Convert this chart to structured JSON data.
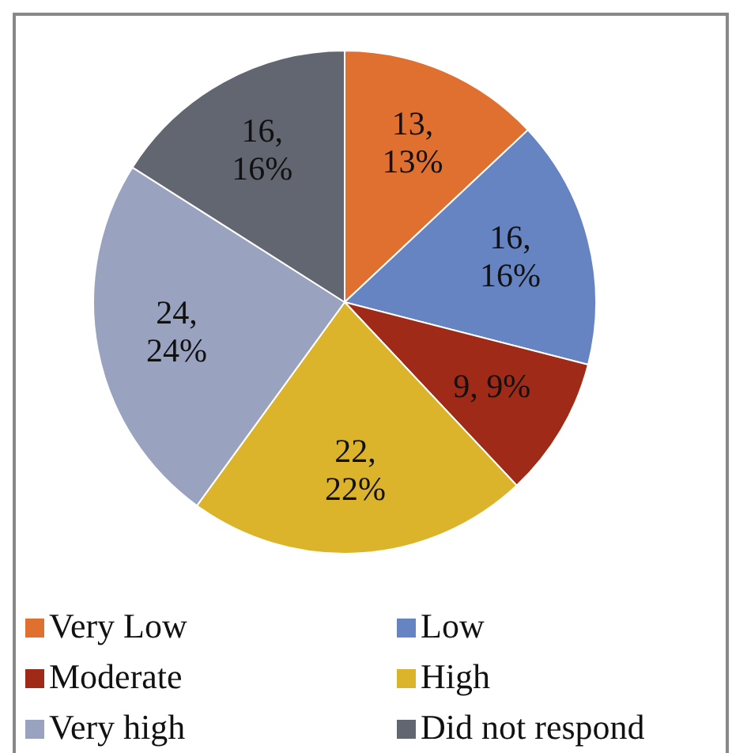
{
  "chart_data": {
    "type": "pie",
    "categories": [
      "Very Low",
      "Low",
      "Moderate",
      "High",
      "Very high",
      "Did not respond"
    ],
    "values": [
      13,
      16,
      9,
      22,
      24,
      16
    ],
    "colors": [
      "#e07030",
      "#6683c2",
      "#9e2a17",
      "#dbb42b",
      "#99a3bf",
      "#626670"
    ],
    "value_labels": [
      "13, 13%",
      "16, 16%",
      "9, 9%",
      "22, 22%",
      "24, 24%",
      "16, 16%"
    ],
    "legend": "bottom"
  }
}
